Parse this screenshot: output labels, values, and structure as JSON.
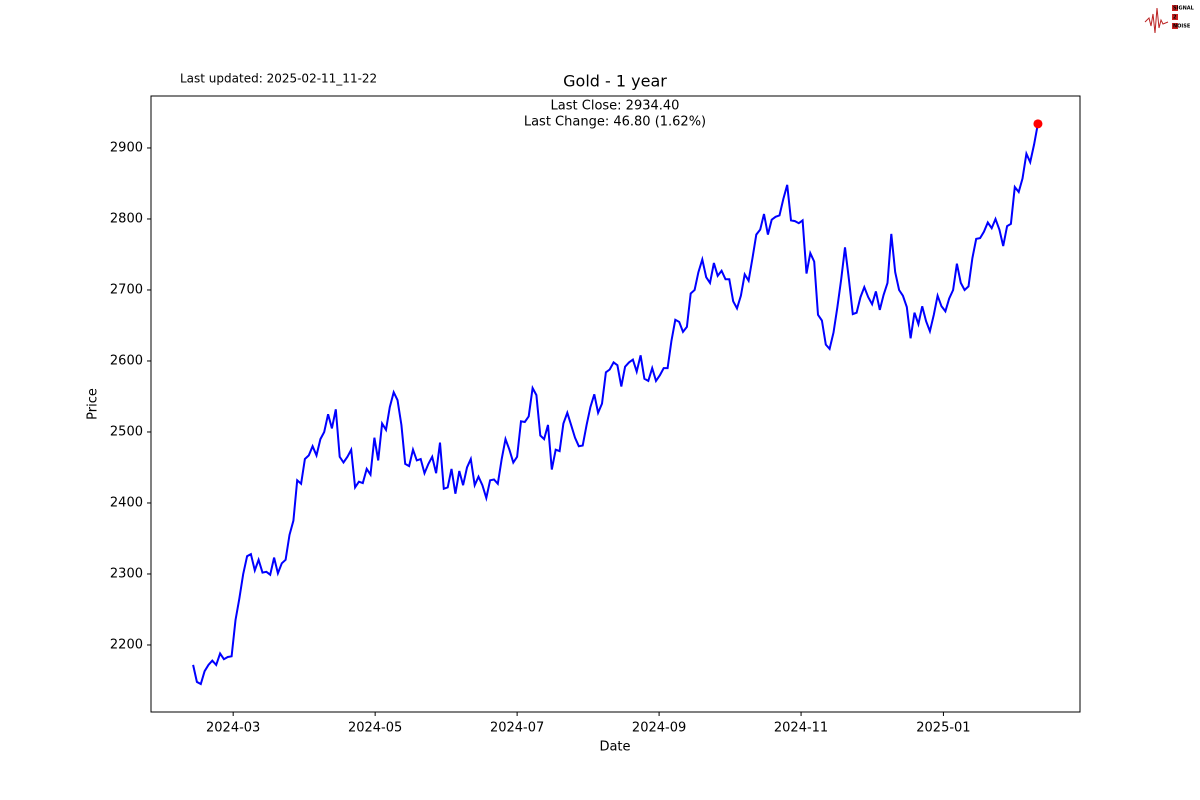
{
  "chart_data": {
    "type": "line",
    "title": "Gold - 1 year",
    "subtitle": "Last updated: 2025-02-11_11-22",
    "annotations": [
      "Last Close: 2934.40",
      "Last Change: 46.80 (1.62%)"
    ],
    "xlabel": "Date",
    "ylabel": "Price",
    "logo": [
      "SIGNAL",
      "2",
      "NOISE"
    ],
    "color": "#0000ff",
    "last_point_color": "#ff0000",
    "values": [
      2172,
      2148,
      2145,
      2163,
      2172,
      2178,
      2172,
      2188,
      2180,
      2183,
      2184,
      2235,
      2265,
      2300,
      2325,
      2328,
      2305,
      2320,
      2302,
      2303,
      2299,
      2323,
      2301,
      2315,
      2320,
      2355,
      2375,
      2432,
      2427,
      2462,
      2467,
      2480,
      2467,
      2490,
      2500,
      2525,
      2505,
      2532,
      2465,
      2457,
      2465,
      2475,
      2422,
      2430,
      2428,
      2448,
      2440,
      2492,
      2460,
      2512,
      2503,
      2535,
      2556,
      2545,
      2510,
      2455,
      2452,
      2475,
      2460,
      2462,
      2442,
      2455,
      2465,
      2442,
      2485,
      2420,
      2422,
      2448,
      2413,
      2445,
      2425,
      2450,
      2462,
      2425,
      2437,
      2425,
      2407,
      2432,
      2433,
      2427,
      2462,
      2490,
      2475,
      2457,
      2465,
      2515,
      2514,
      2522,
      2562,
      2552,
      2495,
      2490,
      2510,
      2447,
      2475,
      2473,
      2512,
      2527,
      2510,
      2492,
      2480,
      2481,
      2510,
      2535,
      2553,
      2527,
      2540,
      2584,
      2588,
      2598,
      2594,
      2564,
      2592,
      2598,
      2602,
      2585,
      2608,
      2575,
      2572,
      2590,
      2572,
      2580,
      2590,
      2590,
      2628,
      2658,
      2655,
      2641,
      2648,
      2695,
      2700,
      2725,
      2743,
      2718,
      2710,
      2738,
      2720,
      2727,
      2715,
      2715,
      2684,
      2674,
      2692,
      2722,
      2713,
      2745,
      2778,
      2785,
      2807,
      2778,
      2799,
      2803,
      2805,
      2828,
      2848,
      2798,
      2797,
      2794,
      2798,
      2723,
      2752,
      2740,
      2665,
      2657,
      2623,
      2617,
      2640,
      2675,
      2715,
      2760,
      2715,
      2666,
      2668,
      2690,
      2704,
      2690,
      2680,
      2698,
      2672,
      2693,
      2710,
      2779,
      2725,
      2700,
      2692,
      2676,
      2632,
      2668,
      2652,
      2677,
      2656,
      2642,
      2665,
      2692,
      2677,
      2670,
      2688,
      2700,
      2737,
      2710,
      2700,
      2705,
      2745,
      2772,
      2773,
      2782,
      2795,
      2787,
      2800,
      2785,
      2762,
      2790,
      2793,
      2845,
      2838,
      2857,
      2892,
      2880,
      2905,
      2934
    ],
    "xlim": [
      -10.9,
      229.9
    ],
    "xticks": [
      {
        "value": 10.4,
        "label": "2024-03"
      },
      {
        "value": 47.2,
        "label": "2024-05"
      },
      {
        "value": 84.0,
        "label": "2024-07"
      },
      {
        "value": 120.8,
        "label": "2024-09"
      },
      {
        "value": 157.6,
        "label": "2024-11"
      },
      {
        "value": 194.5,
        "label": "2025-01"
      }
    ],
    "ylim": [
      2105.6,
      2973.2
    ],
    "yticks": [
      2200,
      2300,
      2400,
      2500,
      2600,
      2700,
      2800,
      2900
    ],
    "grid": false
  }
}
